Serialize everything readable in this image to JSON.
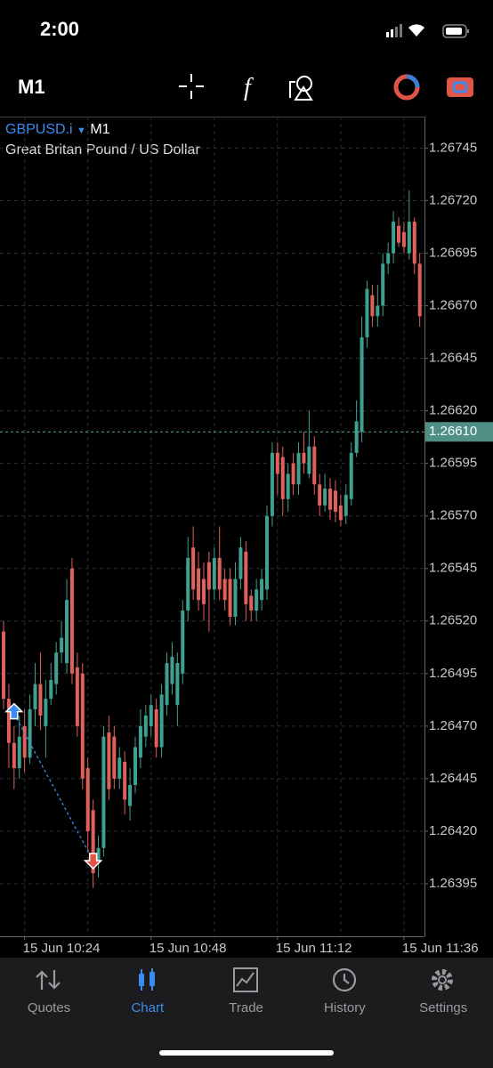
{
  "status_bar": {
    "time": "2:00"
  },
  "toolbar": {
    "timeframe": "M1"
  },
  "chart_data": {
    "type": "candlestick",
    "symbol": "GBPUSD.i",
    "timeframe": "M1",
    "description": "Great Britan Pound / US Dollar",
    "categories": [
      null,
      null,
      null,
      null,
      "15 Jun 10:24",
      null,
      null,
      null,
      null,
      null,
      null,
      null,
      null,
      null,
      null,
      null,
      null,
      null,
      null,
      null,
      null,
      null,
      null,
      null,
      null,
      null,
      null,
      null,
      "15 Jun 10:48",
      null,
      null,
      null,
      null,
      null,
      null,
      null,
      null,
      null,
      null,
      null,
      null,
      null,
      null,
      null,
      null,
      null,
      null,
      null,
      null,
      null,
      null,
      null,
      "15 Jun 11:12",
      null,
      null,
      null,
      null,
      null,
      null,
      null,
      null,
      null,
      null,
      null,
      null,
      null,
      null,
      null,
      null,
      null,
      null,
      null,
      null,
      null,
      null,
      null,
      "15 Jun 11:36",
      null,
      null,
      null
    ],
    "open": [
      1.26515,
      1.26483,
      1.26462,
      1.2645,
      1.2647,
      1.26455,
      1.26478,
      1.2649,
      1.2647,
      1.26483,
      1.2649,
      1.26505,
      1.265,
      1.26545,
      1.26498,
      1.26495,
      1.2645,
      1.2643,
      1.26405,
      1.26412,
      1.26467,
      1.26465,
      1.26445,
      1.26453,
      1.26432,
      1.26442,
      1.26455,
      1.26465,
      1.2647,
      1.26478,
      1.2646,
      1.2648,
      1.2649,
      1.2648,
      1.26495,
      1.26525,
      1.26555,
      1.26545,
      1.2654,
      1.26548,
      1.26535,
      1.2655,
      1.2654,
      1.2654,
      1.26522,
      1.2654,
      1.26553,
      1.26532,
      1.26525,
      1.2653,
      1.26535,
      1.2657,
      1.266,
      1.26598,
      1.26578,
      1.26595,
      1.26585,
      1.266,
      1.2659,
      1.26603,
      1.26585,
      1.26575,
      1.26583,
      1.26582,
      1.26575,
      1.2657,
      1.26578,
      1.266,
      1.2661,
      1.26655,
      1.26675,
      1.26665,
      1.2667,
      1.2669,
      1.26695,
      1.26708,
      1.26705,
      1.26695,
      1.2671,
      1.2669
    ],
    "high": [
      1.2652,
      1.2649,
      1.2647,
      1.26475,
      1.26478,
      1.26485,
      1.265,
      1.26505,
      1.26492,
      1.265,
      1.2651,
      1.2652,
      1.2654,
      1.2655,
      1.26505,
      1.265,
      1.26455,
      1.26435,
      1.26418,
      1.2647,
      1.26475,
      1.2647,
      1.2646,
      1.26458,
      1.2645,
      1.26465,
      1.26478,
      1.2648,
      1.26485,
      1.26483,
      1.2649,
      1.26505,
      1.2651,
      1.26505,
      1.2653,
      1.2656,
      1.26565,
      1.26553,
      1.26548,
      1.26553,
      1.26555,
      1.26565,
      1.26545,
      1.26545,
      1.26548,
      1.2656,
      1.26558,
      1.26535,
      1.2654,
      1.26545,
      1.26575,
      1.26605,
      1.26605,
      1.26603,
      1.26595,
      1.266,
      1.26605,
      1.2661,
      1.2662,
      1.26608,
      1.2659,
      1.2659,
      1.26588,
      1.26587,
      1.2658,
      1.26585,
      1.26605,
      1.26625,
      1.26665,
      1.26682,
      1.2668,
      1.2668,
      1.26695,
      1.267,
      1.26715,
      1.26712,
      1.2671,
      1.26725,
      1.26712,
      1.26695
    ],
    "low": [
      1.26478,
      1.2645,
      1.2644,
      1.26445,
      1.26448,
      1.26452,
      1.2647,
      1.26468,
      1.26455,
      1.2648,
      1.26485,
      1.265,
      1.26495,
      1.2649,
      1.26465,
      1.2644,
      1.2641,
      1.26393,
      1.26398,
      1.26408,
      1.26435,
      1.2644,
      1.2644,
      1.26428,
      1.26425,
      1.26438,
      1.2645,
      1.2646,
      1.26465,
      1.26455,
      1.26455,
      1.26475,
      1.26485,
      1.2647,
      1.2649,
      1.2652,
      1.2653,
      1.26525,
      1.2652,
      1.26515,
      1.2653,
      1.2653,
      1.26525,
      1.26518,
      1.26518,
      1.26535,
      1.2652,
      1.2652,
      1.2652,
      1.26525,
      1.2653,
      1.26565,
      1.2658,
      1.2657,
      1.26572,
      1.2658,
      1.2658,
      1.2659,
      1.26588,
      1.2658,
      1.2657,
      1.26572,
      1.26568,
      1.26567,
      1.26565,
      1.26566,
      1.26575,
      1.26598,
      1.26605,
      1.2665,
      1.2666,
      1.2666,
      1.26665,
      1.26685,
      1.2669,
      1.26698,
      1.26695,
      1.26692,
      1.26685,
      1.2666
    ],
    "close": [
      1.26483,
      1.26462,
      1.2645,
      1.26465,
      1.26455,
      1.26478,
      1.2649,
      1.26475,
      1.26483,
      1.26492,
      1.26505,
      1.26512,
      1.2653,
      1.26495,
      1.2647,
      1.26445,
      1.2642,
      1.264,
      1.26412,
      1.26465,
      1.2644,
      1.26445,
      1.26455,
      1.26435,
      1.26442,
      1.2646,
      1.2647,
      1.26475,
      1.2648,
      1.2646,
      1.26485,
      1.265,
      1.26503,
      1.265,
      1.26525,
      1.2655,
      1.26535,
      1.2653,
      1.26528,
      1.26535,
      1.2655,
      1.26535,
      1.2653,
      1.26522,
      1.2654,
      1.26555,
      1.26528,
      1.26525,
      1.26535,
      1.2654,
      1.2657,
      1.266,
      1.2659,
      1.26578,
      1.2659,
      1.26585,
      1.266,
      1.26595,
      1.26603,
      1.26585,
      1.26575,
      1.26583,
      1.26573,
      1.26572,
      1.26568,
      1.2658,
      1.266,
      1.26615,
      1.26655,
      1.26678,
      1.26665,
      1.2667,
      1.2669,
      1.26695,
      1.2671,
      1.267,
      1.26698,
      1.2671,
      1.2669,
      1.26665
    ],
    "up_color": "#3fa08f",
    "down_color": "#e0605a",
    "ylim": [
      1.2637,
      1.2676
    ],
    "yticks": [
      1.26745,
      {
        "value": 1.2672,
        "label": "1.26720"
      },
      1.26695,
      {
        "value": 1.2667,
        "label": "1.26670"
      },
      1.26645,
      {
        "value": 1.2662,
        "label": "1.26620"
      },
      1.26595,
      {
        "value": 1.2657,
        "label": "1.26570"
      },
      1.26545,
      {
        "value": 1.2652,
        "label": "1.26520"
      },
      1.26495,
      {
        "value": 1.2647,
        "label": "1.26470"
      },
      1.26445,
      {
        "value": 1.2642,
        "label": "1.26420"
      },
      1.26395
    ],
    "grid": true,
    "current_price": {
      "value": 1.2661,
      "label": "1.26610"
    },
    "trade": {
      "open_index": 2,
      "open_price": 1.26476,
      "close_index": 17,
      "close_price": 1.26406
    }
  },
  "tab_bar": {
    "items": [
      "Quotes",
      "Chart",
      "Trade",
      "History",
      "Settings"
    ],
    "active": 1
  }
}
